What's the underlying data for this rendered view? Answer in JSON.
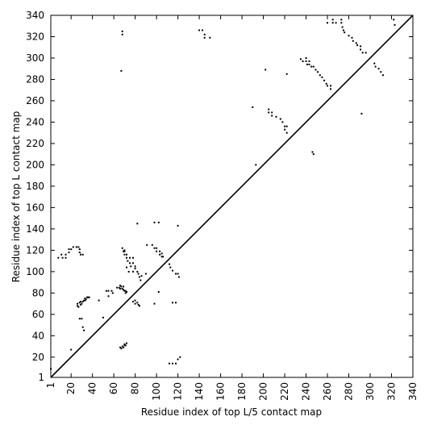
{
  "chart_data": {
    "type": "scatter",
    "title": "",
    "xlabel": "Residue index of top L/5 contact map",
    "ylabel": "Residue index of top L contact map",
    "xlim": [
      1,
      340
    ],
    "ylim": [
      1,
      340
    ],
    "grid": false,
    "legend": "none",
    "x_ticks": [
      1,
      20,
      40,
      60,
      80,
      100,
      120,
      140,
      160,
      180,
      200,
      220,
      240,
      260,
      280,
      300,
      320,
      340
    ],
    "x_tick_labels": [
      "1",
      "20",
      "40",
      "60",
      "80",
      "100",
      "120",
      "140",
      "160",
      "180",
      "200",
      "220",
      "240",
      "260",
      "280",
      "300",
      "320",
      "340"
    ],
    "y_ticks": [
      1,
      20,
      40,
      60,
      80,
      100,
      120,
      140,
      160,
      180,
      200,
      220,
      240,
      260,
      280,
      300,
      320,
      340
    ],
    "y_tick_labels": [
      "1",
      "20",
      "40",
      "60",
      "80",
      "100",
      "120",
      "140",
      "160",
      "180",
      "200",
      "220",
      "240",
      "260",
      "280",
      "300",
      "320",
      "340"
    ],
    "diagonal": {
      "from": [
        1,
        1
      ],
      "to": [
        340,
        340
      ],
      "color": "#000000"
    },
    "marker_color": "#000000",
    "series": [
      {
        "region": "upper",
        "points": [
          [
            1,
            9
          ],
          [
            67,
            288
          ],
          [
            68,
            322
          ],
          [
            68,
            325
          ],
          [
            140,
            326
          ],
          [
            143,
            326
          ],
          [
            145,
            322
          ],
          [
            145,
            319
          ],
          [
            150,
            319
          ],
          [
            190,
            254
          ],
          [
            193,
            200
          ],
          [
            202,
            289
          ],
          [
            205,
            252
          ],
          [
            205,
            249
          ],
          [
            208,
            249
          ],
          [
            208,
            246
          ],
          [
            212,
            245
          ],
          [
            216,
            243
          ],
          [
            218,
            240
          ],
          [
            220,
            236
          ],
          [
            220,
            233
          ],
          [
            222,
            236
          ],
          [
            222,
            230
          ],
          [
            222,
            285
          ],
          [
            235,
            299
          ],
          [
            237,
            297
          ],
          [
            240,
            300
          ],
          [
            240,
            297
          ],
          [
            241,
            294
          ],
          [
            243,
            297
          ],
          [
            243,
            294
          ],
          [
            245,
            292
          ],
          [
            246,
            212
          ],
          [
            247,
            210
          ],
          [
            247,
            292
          ],
          [
            249,
            289
          ],
          [
            251,
            287
          ],
          [
            253,
            284
          ],
          [
            255,
            282
          ],
          [
            257,
            279
          ],
          [
            259,
            276
          ],
          [
            260,
            274
          ],
          [
            263,
            274
          ],
          [
            263,
            271
          ],
          [
            265,
            336
          ],
          [
            265,
            333
          ],
          [
            260,
            333
          ],
          [
            268,
            333
          ],
          [
            273,
            336
          ],
          [
            273,
            333
          ],
          [
            274,
            329
          ],
          [
            275,
            326
          ],
          [
            276,
            324
          ],
          [
            280,
            321
          ],
          [
            283,
            319
          ],
          [
            284,
            316
          ],
          [
            287,
            314
          ],
          [
            288,
            312
          ],
          [
            291,
            311
          ],
          [
            291,
            308
          ],
          [
            293,
            305
          ],
          [
            296,
            305
          ],
          [
            292,
            248
          ],
          [
            304,
            295
          ],
          [
            305,
            292
          ],
          [
            308,
            290
          ],
          [
            310,
            287
          ],
          [
            312,
            284
          ],
          [
            322,
            336
          ],
          [
            323,
            331
          ]
        ]
      },
      {
        "region": "lower",
        "points": [
          [
            8,
            113
          ],
          [
            11,
            116
          ],
          [
            12,
            113
          ],
          [
            15,
            113
          ],
          [
            15,
            116
          ],
          [
            18,
            118
          ],
          [
            18,
            121
          ],
          [
            20,
            121
          ],
          [
            22,
            123
          ],
          [
            25,
            123
          ],
          [
            27,
            123
          ],
          [
            28,
            121
          ],
          [
            28,
            118
          ],
          [
            29,
            116
          ],
          [
            31,
            116
          ],
          [
            20,
            27
          ],
          [
            26,
            68
          ],
          [
            26,
            70
          ],
          [
            27,
            67
          ],
          [
            28,
            71
          ],
          [
            29,
            69
          ],
          [
            29,
            72
          ],
          [
            30,
            70
          ],
          [
            31,
            72
          ],
          [
            32,
            73
          ],
          [
            33,
            73
          ],
          [
            33,
            75
          ],
          [
            34,
            74
          ],
          [
            35,
            76
          ],
          [
            36,
            76
          ],
          [
            37,
            76
          ],
          [
            28,
            56
          ],
          [
            30,
            56
          ],
          [
            31,
            48
          ],
          [
            32,
            45
          ],
          [
            46,
            73
          ],
          [
            50,
            57
          ],
          [
            53,
            82
          ],
          [
            55,
            82
          ],
          [
            58,
            82
          ],
          [
            59,
            80
          ],
          [
            55,
            77
          ],
          [
            63,
            85
          ],
          [
            65,
            85
          ],
          [
            66,
            87
          ],
          [
            66,
            84
          ],
          [
            67,
            86
          ],
          [
            68,
            84
          ],
          [
            69,
            83
          ],
          [
            69,
            86
          ],
          [
            70,
            82
          ],
          [
            71,
            80
          ],
          [
            72,
            81
          ],
          [
            71,
            82
          ],
          [
            68,
            122
          ],
          [
            69,
            119
          ],
          [
            70,
            119
          ],
          [
            70,
            116
          ],
          [
            72,
            116
          ],
          [
            72,
            113
          ],
          [
            73,
            110
          ],
          [
            75,
            108
          ],
          [
            75,
            113
          ],
          [
            78,
            113
          ],
          [
            78,
            108
          ],
          [
            80,
            105
          ],
          [
            80,
            103
          ],
          [
            82,
            100
          ],
          [
            83,
            98
          ],
          [
            84,
            95
          ],
          [
            85,
            92
          ],
          [
            82,
            145
          ],
          [
            86,
            96
          ],
          [
            66,
            29
          ],
          [
            67,
            28
          ],
          [
            68,
            30
          ],
          [
            69,
            29
          ],
          [
            70,
            31
          ],
          [
            70,
            32
          ],
          [
            71,
            31
          ],
          [
            72,
            33
          ],
          [
            78,
            72
          ],
          [
            80,
            70
          ],
          [
            80,
            73
          ],
          [
            82,
            71
          ],
          [
            83,
            69
          ],
          [
            84,
            68
          ],
          [
            70,
            120
          ],
          [
            72,
            104
          ],
          [
            74,
            100
          ],
          [
            76,
            105
          ],
          [
            78,
            100
          ],
          [
            91,
            125
          ],
          [
            96,
            125
          ],
          [
            98,
            122
          ],
          [
            98,
            146
          ],
          [
            100,
            122
          ],
          [
            100,
            119
          ],
          [
            102,
            146
          ],
          [
            103,
            119
          ],
          [
            103,
            116
          ],
          [
            105,
            114
          ],
          [
            105,
            117
          ],
          [
            106,
            114
          ],
          [
            112,
            107
          ],
          [
            113,
            104
          ],
          [
            115,
            101
          ],
          [
            118,
            98
          ],
          [
            120,
            98
          ],
          [
            121,
            95
          ],
          [
            120,
            143
          ],
          [
            102,
            81
          ],
          [
            98,
            70
          ],
          [
            90,
            98
          ],
          [
            112,
            14
          ],
          [
            115,
            14
          ],
          [
            118,
            14
          ],
          [
            120,
            18
          ],
          [
            122,
            20
          ],
          [
            115,
            71
          ],
          [
            118,
            71
          ]
        ]
      }
    ]
  }
}
